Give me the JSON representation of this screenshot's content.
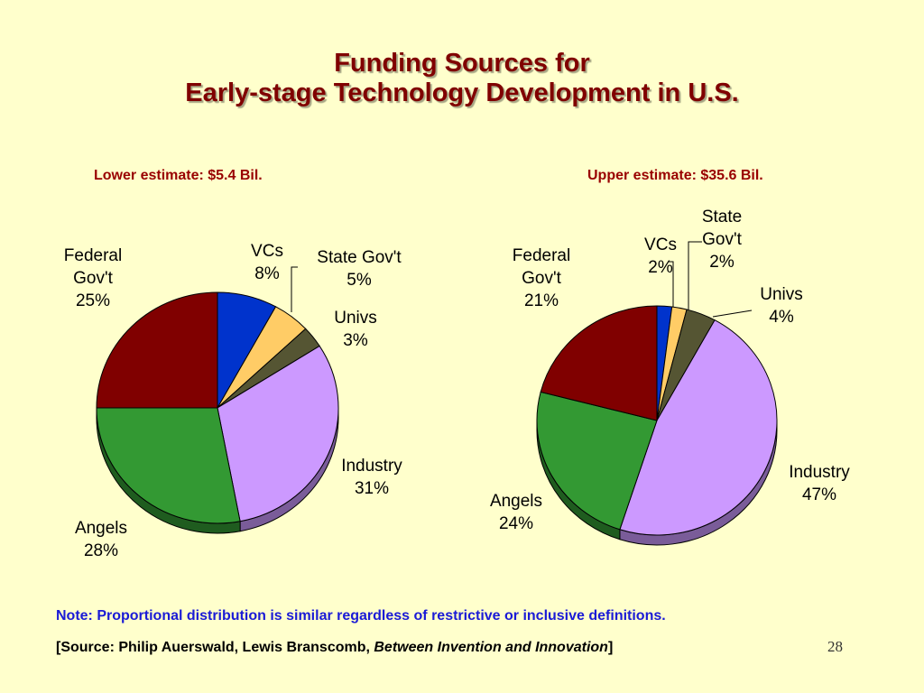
{
  "title": {
    "line1": "Funding Sources for",
    "line2": "Early-stage Technology Development in U.S."
  },
  "colors": {
    "title": "#800000",
    "estimate": "#990000",
    "note": "#1a1ad6",
    "background": "#ffffcc"
  },
  "chart_data": [
    {
      "type": "pie",
      "title": "Lower estimate: $5.4 Bil.",
      "categories": [
        "VCs",
        "State Gov't",
        "Univs",
        "Industry",
        "Angels",
        "Federal Gov't"
      ],
      "labels": [
        [
          "VCs",
          "8%"
        ],
        [
          "State Gov't",
          "5%"
        ],
        [
          "Univs",
          "3%"
        ],
        [
          "Industry",
          "31%"
        ],
        [
          "Angels",
          "28%"
        ],
        [
          "Federal",
          "Gov't",
          "25%"
        ]
      ],
      "values": [
        8,
        5,
        3,
        31,
        28,
        25
      ],
      "colors": [
        "#0033cc",
        "#ffcc66",
        "#555533",
        "#cc99ff",
        "#339933",
        "#800000"
      ]
    },
    {
      "type": "pie",
      "title": "Upper estimate:  $35.6 Bil.",
      "categories": [
        "VCs",
        "State Gov't",
        "Univs",
        "Industry",
        "Angels",
        "Federal Gov't"
      ],
      "labels": [
        [
          "VCs",
          "2%"
        ],
        [
          "State",
          "Gov't",
          "2%"
        ],
        [
          "Univs",
          "4%"
        ],
        [
          "Industry",
          "47%"
        ],
        [
          "Angels",
          "24%"
        ],
        [
          "Federal",
          "Gov't",
          "21%"
        ]
      ],
      "values": [
        2,
        2,
        4,
        47,
        24,
        21
      ],
      "colors": [
        "#0033cc",
        "#ffcc66",
        "#555533",
        "#cc99ff",
        "#339933",
        "#800000"
      ]
    }
  ],
  "note": "Note:  Proportional distribution is similar regardless of restrictive or inclusive definitions.",
  "source": {
    "prefix": "[Source:  Philip Auerswald, Lewis Branscomb, ",
    "book": "Between Invention and Innovation",
    "suffix": "]"
  },
  "page_number": "28"
}
